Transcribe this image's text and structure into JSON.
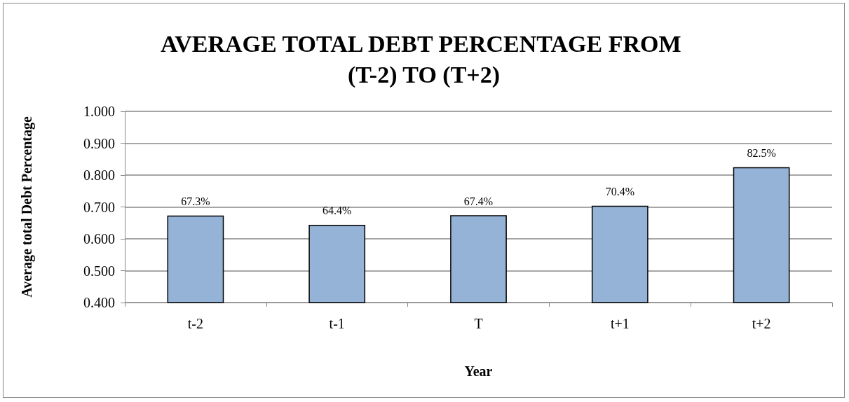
{
  "chart_data": {
    "type": "bar",
    "title": "AVERAGE TOTAL DEBT PERCENTAGE FROM (T-2) TO (T+2)",
    "xlabel": "Year",
    "ylabel": "Average total Debt Percentage",
    "categories": [
      "t-2",
      "t-1",
      "T",
      "t+1",
      "t+2"
    ],
    "values": [
      0.673,
      0.644,
      0.674,
      0.704,
      0.825
    ],
    "value_labels": [
      "67.3%",
      "64.4%",
      "67.4%",
      "70.4%",
      "82.5%"
    ],
    "color": "#95b3d7",
    "ylim": [
      0.4,
      1.0
    ],
    "yticks": [
      {
        "value": 0.4,
        "label": "0.400"
      },
      {
        "value": 0.5,
        "label": "0.500"
      },
      {
        "value": 0.6,
        "label": "0.600"
      },
      {
        "value": 0.7,
        "label": "0.700"
      },
      {
        "value": 0.8,
        "label": "0.800"
      },
      {
        "value": 0.9,
        "label": "0.900"
      },
      {
        "value": 1.0,
        "label": "1.000"
      }
    ],
    "grid": "y"
  }
}
